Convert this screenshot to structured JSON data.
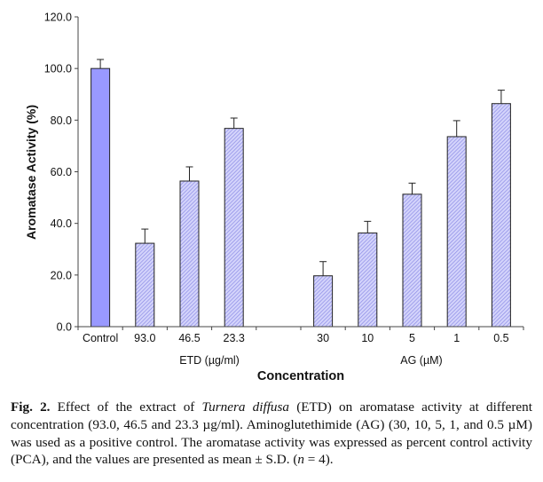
{
  "chart_data": {
    "type": "bar",
    "title": "",
    "ylabel": "Aromatase Activity (%)",
    "xlabel": "Concentration",
    "ylim": [
      0,
      120
    ],
    "yticks": [
      "0.0",
      "20.0",
      "40.0",
      "60.0",
      "80.0",
      "100.0",
      "120.0"
    ],
    "grid": false,
    "groups": [
      {
        "label": "",
        "categories": [
          "Control"
        ],
        "values": [
          100.0
        ],
        "errors": [
          3.5
        ],
        "style": "solid"
      },
      {
        "label": "ETD (µg/ml)",
        "categories": [
          "93.0",
          "46.5",
          "23.3"
        ],
        "values": [
          32.3,
          56.4,
          76.8
        ],
        "errors": [
          5.5,
          5.5,
          4.0
        ],
        "style": "hatched"
      },
      {
        "label": "AG (µM)",
        "categories": [
          "30",
          "10",
          "5",
          "1",
          "0.5"
        ],
        "values": [
          19.7,
          36.3,
          51.3,
          73.6,
          86.4
        ],
        "errors": [
          5.5,
          4.5,
          4.3,
          6.2,
          5.2
        ],
        "style": "hatched"
      }
    ],
    "colors": {
      "solid": "#9999ff",
      "hatch_bg": "#d4d4fb",
      "hatch_line": "#8c8ce6",
      "outline": "#222222"
    }
  },
  "caption": {
    "label": "Fig. 2.",
    "part1": " Effect of the extract of ",
    "species": "Turnera diffusa",
    "part2": " (ETD) on aromatase activity at different concentration (93.0, 46.5 and 23.3 µg/ml). Aminoglutethimide (AG) (30, 10, 5, 1, and 0.5 µM) was used as a positive control. The aromatase activity was expressed as percent control activity (PCA), and the values are presented as mean ± S.D. (",
    "n_symbol": "n",
    "part3": " = 4)."
  }
}
